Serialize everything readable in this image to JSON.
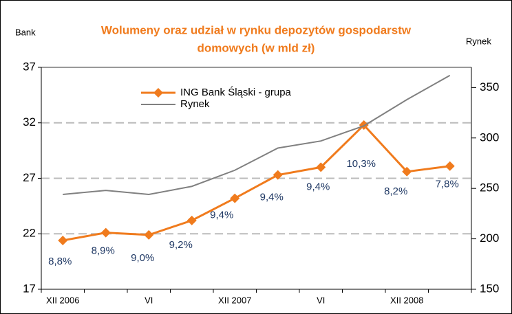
{
  "chart_data": {
    "type": "line",
    "title": [
      "Wolumeny oraz udział w rynku depozytów gospodarstw",
      "domowych (w mld zł)"
    ],
    "y_label": "Bank",
    "y2_label": "Rynek",
    "categories": [
      "XII 2006",
      null,
      "VI",
      null,
      "XII 2007",
      null,
      "VI",
      null,
      "XII 2008",
      null
    ],
    "series": [
      {
        "name": "ING Bank Śląski - grupa",
        "color": "#f07b1d",
        "marker": "diamond",
        "values": [
          21.4,
          22.1,
          21.9,
          23.2,
          25.2,
          27.3,
          28.0,
          31.8,
          27.6,
          28.1
        ],
        "annotations": [
          "8,8%",
          "8,9%",
          "9,0%",
          "9,2%",
          "9,4%",
          "9,4%",
          "9,4%",
          "10,3%",
          "8,2%",
          "7,8%"
        ]
      },
      {
        "name": "Rynek",
        "color": "#808080",
        "axis": "y2",
        "values": [
          244,
          248,
          244,
          252,
          268,
          290,
          297,
          312,
          338,
          362
        ]
      }
    ],
    "ylim": [
      17,
      37
    ],
    "yticks": [
      17,
      22,
      27,
      32,
      37
    ],
    "y2lim": [
      150,
      370
    ],
    "y2ticks": [
      150,
      200,
      250,
      300,
      350
    ],
    "grid": true
  }
}
